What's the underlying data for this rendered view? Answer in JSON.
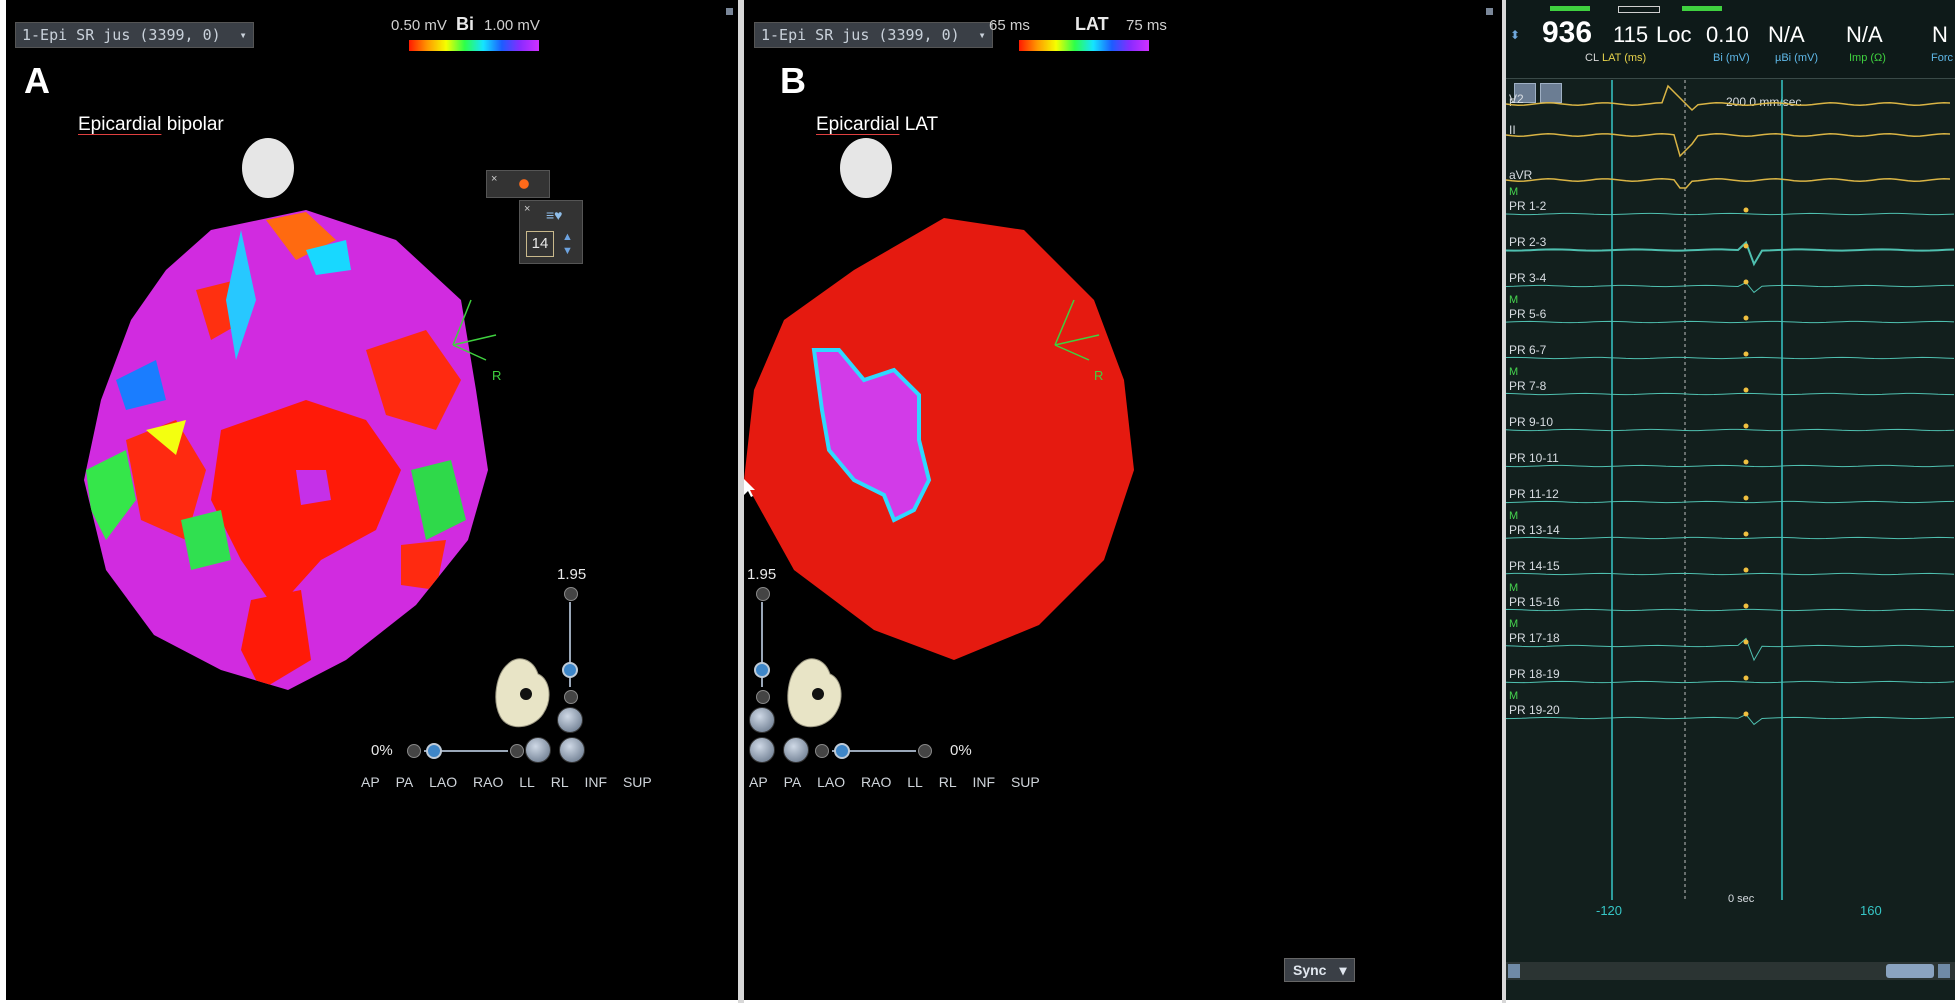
{
  "panelA": {
    "map_name": "1-Epi SR jus (3399, 0)",
    "scale_min": "0.50 mV",
    "scale_title": "Bi",
    "scale_max": "1.00 mV",
    "letter": "A",
    "label_word1": "Epicardial",
    "label_word2": "bipolar",
    "tool_value": "14",
    "zoom_value": "1.95",
    "transparency": "0%",
    "axis_label": "R",
    "views": [
      "AP",
      "PA",
      "LAO",
      "RAO",
      "LL",
      "RL",
      "INF",
      "SUP"
    ]
  },
  "panelB": {
    "map_name": "1-Epi SR jus (3399, 0)",
    "scale_min": "65 ms",
    "scale_title": "LAT",
    "scale_max": "75 ms",
    "letter": "B",
    "label_word1": "Epicardial",
    "label_word2": "LAT",
    "zoom_value": "1.95",
    "transparency": "0%",
    "axis_label": "R",
    "sync_label": "Sync",
    "views": [
      "AP",
      "PA",
      "LAO",
      "RAO",
      "LL",
      "RL",
      "INF",
      "SUP"
    ]
  },
  "egm": {
    "header": {
      "cl_value": "936",
      "cl_label": "CL",
      "lat_value": "115",
      "lat_label": "LAT (ms)",
      "loc_label": "Loc",
      "bi_value": "0.10",
      "bi_label": "Bi (mV)",
      "ubi_value": "N/A",
      "ubi_label": "µBi (mV)",
      "imp_value": "N/A",
      "imp_label": "Imp (Ω)",
      "force_value": "N",
      "force_label": "Forc"
    },
    "sweep_speed": "200.0 mm/sec",
    "surface_leads": [
      "V2",
      "II",
      "aVR"
    ],
    "channels": [
      {
        "label": "PR 1-2",
        "m": true
      },
      {
        "label": "PR 2-3",
        "m": false
      },
      {
        "label": "PR 3-4",
        "m": false
      },
      {
        "label": "PR 5-6",
        "m": true
      },
      {
        "label": "PR 6-7",
        "m": false
      },
      {
        "label": "PR 7-8",
        "m": true
      },
      {
        "label": "PR 9-10",
        "m": false
      },
      {
        "label": "PR 10-11",
        "m": false
      },
      {
        "label": "PR 11-12",
        "m": false
      },
      {
        "label": "PR 13-14",
        "m": true
      },
      {
        "label": "PR 14-15",
        "m": false
      },
      {
        "label": "PR 15-16",
        "m": true
      },
      {
        "label": "PR 17-18",
        "m": true
      },
      {
        "label": "PR 18-19",
        "m": false
      },
      {
        "label": "PR 19-20",
        "m": true
      }
    ],
    "m_label": "M",
    "window_left": "-120",
    "window_right": "160",
    "zero_label": "0 sec",
    "f_label": "F",
    "colors": {
      "surface": "#d9b445",
      "channel": "#4fc0b0",
      "window": "#36c6c6"
    }
  }
}
